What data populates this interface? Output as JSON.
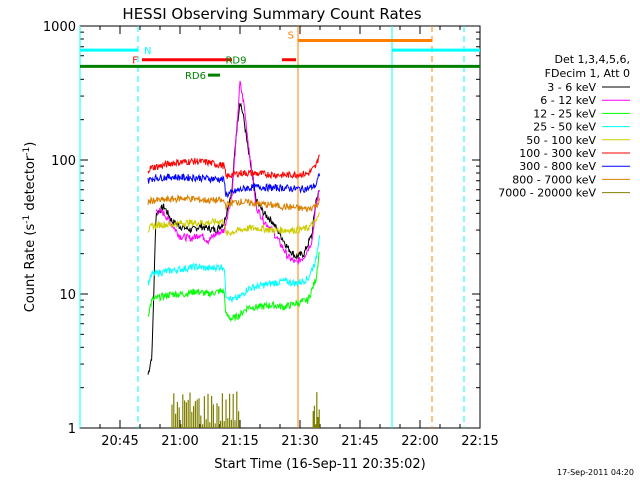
{
  "chart_data": {
    "type": "line",
    "title": "HESSI Observing Summary Count Rates",
    "xlabel": "Start Time (16-Sep-11 20:35:02)",
    "ylabel_main": "Count Rate (s",
    "ylabel_sup1": "-1",
    "ylabel_mid": " detector",
    "ylabel_sup2": "-1",
    "ylabel_end": ")",
    "yscale": "log",
    "ylim": [
      1,
      1000
    ],
    "xlim_minutes": [
      0,
      100
    ],
    "xticks": [
      {
        "label": "20:45",
        "t": 10
      },
      {
        "label": "21:00",
        "t": 25
      },
      {
        "label": "21:15",
        "t": 40
      },
      {
        "label": "21:30",
        "t": 55
      },
      {
        "label": "21:45",
        "t": 70
      },
      {
        "label": "22:00",
        "t": 85
      },
      {
        "label": "22:15",
        "t": 100
      }
    ],
    "yticks": [
      {
        "label": "1",
        "v": 1
      },
      {
        "label": "10",
        "v": 10
      },
      {
        "label": "100",
        "v": 100
      },
      {
        "label": "1000",
        "v": 1000
      }
    ],
    "legend_header": [
      "Det 1,3,4,5,6,",
      "FDecim 1, Att 0"
    ],
    "series": [
      {
        "name": "3 - 6 keV",
        "color": "#000000",
        "points": [
          [
            17,
            2.5
          ],
          [
            18,
            3.5
          ],
          [
            19,
            40
          ],
          [
            21,
            45
          ],
          [
            23,
            35
          ],
          [
            25,
            32
          ],
          [
            28,
            30
          ],
          [
            30,
            32
          ],
          [
            32,
            31
          ],
          [
            34,
            30
          ],
          [
            36,
            34
          ],
          [
            38,
            60
          ],
          [
            39,
            150
          ],
          [
            40,
            280
          ],
          [
            41,
            200
          ],
          [
            42,
            120
          ],
          [
            43,
            80
          ],
          [
            44,
            50
          ],
          [
            46,
            40
          ],
          [
            48,
            35
          ],
          [
            50,
            28
          ],
          [
            52,
            22
          ],
          [
            54,
            19
          ],
          [
            56,
            20
          ],
          [
            58,
            28
          ],
          [
            59,
            50
          ],
          [
            60,
            60
          ]
        ]
      },
      {
        "name": "6 - 12 keV",
        "color": "#ff00ff",
        "points": [
          [
            19,
            42
          ],
          [
            21,
            40
          ],
          [
            23,
            33
          ],
          [
            25,
            27
          ],
          [
            28,
            26
          ],
          [
            30,
            28
          ],
          [
            32,
            25
          ],
          [
            34,
            28
          ],
          [
            36,
            30
          ],
          [
            38,
            55
          ],
          [
            39,
            140
          ],
          [
            40,
            380
          ],
          [
            41,
            260
          ],
          [
            42,
            140
          ],
          [
            43,
            80
          ],
          [
            44,
            45
          ],
          [
            46,
            35
          ],
          [
            48,
            30
          ],
          [
            50,
            24
          ],
          [
            52,
            19
          ],
          [
            54,
            17
          ],
          [
            56,
            19
          ],
          [
            58,
            25
          ],
          [
            59,
            45
          ],
          [
            60,
            62
          ]
        ]
      },
      {
        "name": "12 - 25 keV",
        "color": "#00ff00",
        "points": [
          [
            17,
            7
          ],
          [
            18,
            9
          ],
          [
            20,
            9.5
          ],
          [
            23,
            10
          ],
          [
            26,
            10
          ],
          [
            29,
            10.5
          ],
          [
            32,
            10
          ],
          [
            35,
            10.5
          ],
          [
            36,
            10.5
          ],
          [
            36.5,
            7
          ],
          [
            38,
            6.5
          ],
          [
            40,
            7
          ],
          [
            41,
            7.5
          ],
          [
            42,
            8
          ],
          [
            45,
            8
          ],
          [
            48,
            8.3
          ],
          [
            51,
            8
          ],
          [
            54,
            8.5
          ],
          [
            57,
            9
          ],
          [
            59,
            13
          ],
          [
            60,
            23
          ]
        ]
      },
      {
        "name": "25 - 50 keV",
        "color": "#00ffff",
        "points": [
          [
            17,
            12
          ],
          [
            18,
            14
          ],
          [
            20,
            14.5
          ],
          [
            23,
            15
          ],
          [
            26,
            15.5
          ],
          [
            29,
            16
          ],
          [
            32,
            15.5
          ],
          [
            35,
            16
          ],
          [
            36,
            16
          ],
          [
            36.5,
            10
          ],
          [
            38,
            9
          ],
          [
            40,
            9.5
          ],
          [
            42,
            11
          ],
          [
            45,
            11.5
          ],
          [
            48,
            12
          ],
          [
            51,
            12.5
          ],
          [
            54,
            12
          ],
          [
            57,
            13
          ],
          [
            59,
            18
          ],
          [
            60,
            30
          ]
        ]
      },
      {
        "name": "50 - 100 keV",
        "color": "#cccc00",
        "points": [
          [
            17,
            30
          ],
          [
            18,
            32
          ],
          [
            20,
            33
          ],
          [
            23,
            33
          ],
          [
            26,
            34
          ],
          [
            29,
            34
          ],
          [
            32,
            34
          ],
          [
            35,
            35
          ],
          [
            36,
            35
          ],
          [
            36.5,
            28
          ],
          [
            38,
            29
          ],
          [
            40,
            30
          ],
          [
            42,
            31
          ],
          [
            45,
            31
          ],
          [
            48,
            30
          ],
          [
            51,
            30
          ],
          [
            54,
            30
          ],
          [
            57,
            31
          ],
          [
            59,
            35
          ],
          [
            60,
            40
          ]
        ]
      },
      {
        "name": "100 - 300 keV",
        "color": "#ff0000",
        "points": [
          [
            17,
            85
          ],
          [
            18,
            88
          ],
          [
            20,
            90
          ],
          [
            23,
            95
          ],
          [
            26,
            97
          ],
          [
            29,
            98
          ],
          [
            32,
            96
          ],
          [
            35,
            92
          ],
          [
            36,
            91
          ],
          [
            36.5,
            75
          ],
          [
            38,
            78
          ],
          [
            40,
            80
          ],
          [
            42,
            80
          ],
          [
            45,
            79
          ],
          [
            48,
            78
          ],
          [
            51,
            77
          ],
          [
            54,
            78
          ],
          [
            57,
            79
          ],
          [
            59,
            90
          ],
          [
            60,
            115
          ]
        ]
      },
      {
        "name": "300 - 800 keV",
        "color": "#0000ff",
        "points": [
          [
            17,
            70
          ],
          [
            18,
            73
          ],
          [
            20,
            74
          ],
          [
            23,
            75
          ],
          [
            26,
            74
          ],
          [
            29,
            74
          ],
          [
            32,
            73
          ],
          [
            35,
            72
          ],
          [
            36,
            71
          ],
          [
            36.5,
            55
          ],
          [
            38,
            57
          ],
          [
            40,
            60
          ],
          [
            42,
            62
          ],
          [
            45,
            63
          ],
          [
            48,
            62
          ],
          [
            51,
            62
          ],
          [
            54,
            61
          ],
          [
            57,
            61
          ],
          [
            59,
            65
          ],
          [
            60,
            80
          ]
        ]
      },
      {
        "name": "800 - 7000 keV",
        "color": "#d98000",
        "points": [
          [
            17,
            48
          ],
          [
            18,
            50
          ],
          [
            20,
            50
          ],
          [
            23,
            51
          ],
          [
            26,
            52
          ],
          [
            29,
            51
          ],
          [
            32,
            50
          ],
          [
            35,
            50
          ],
          [
            36,
            49
          ],
          [
            36.5,
            46
          ],
          [
            38,
            48
          ],
          [
            40,
            49
          ],
          [
            42,
            48
          ],
          [
            45,
            47
          ],
          [
            48,
            46
          ],
          [
            51,
            45
          ],
          [
            54,
            44
          ],
          [
            57,
            43
          ],
          [
            59,
            46
          ],
          [
            60,
            50
          ]
        ]
      },
      {
        "name": "7000 - 20000 keV",
        "color": "#808000",
        "points": [
          [
            23,
            1.5
          ],
          [
            26,
            1.6
          ],
          [
            29,
            1.6
          ],
          [
            32,
            1.5
          ],
          [
            35,
            1.6
          ],
          [
            38,
            1.4
          ],
          [
            40,
            1.4
          ],
          [
            58.5,
            1.5
          ],
          [
            59.5,
            1.6
          ]
        ]
      }
    ],
    "indicators": [
      {
        "label": "N",
        "color": "#00ffff",
        "segments": [
          [
            0,
            14.5
          ],
          [
            78,
            100
          ]
        ],
        "level": 660
      },
      {
        "label": "F",
        "color": "#ff0000",
        "segments": [
          [
            15.5,
            38
          ],
          [
            50.5,
            54
          ]
        ],
        "level": 560
      },
      {
        "label": "S",
        "color": "#ff8000",
        "segments": [
          [
            54.5,
            88
          ]
        ],
        "level": 780
      },
      {
        "label": "RD9",
        "color": "#008000",
        "segments": [
          [
            0,
            100
          ]
        ],
        "level": 500
      },
      {
        "label": "RD6",
        "color": "#008000",
        "segments": [
          [
            32,
            35
          ]
        ],
        "level": 430
      }
    ],
    "vlines": [
      {
        "t": 0,
        "color": "#00ffff",
        "dashed": false
      },
      {
        "t": 14.5,
        "color": "#00ffff",
        "dashed": true
      },
      {
        "t": 54.5,
        "color": "#ff8000",
        "dashed": false
      },
      {
        "t": 78,
        "color": "#00ffff",
        "dashed": false
      },
      {
        "t": 88,
        "color": "#ff8000",
        "dashed": true
      },
      {
        "t": 96,
        "color": "#00ffff",
        "dashed": true
      }
    ],
    "footer_timestamp": "17-Sep-2011 04:20"
  }
}
